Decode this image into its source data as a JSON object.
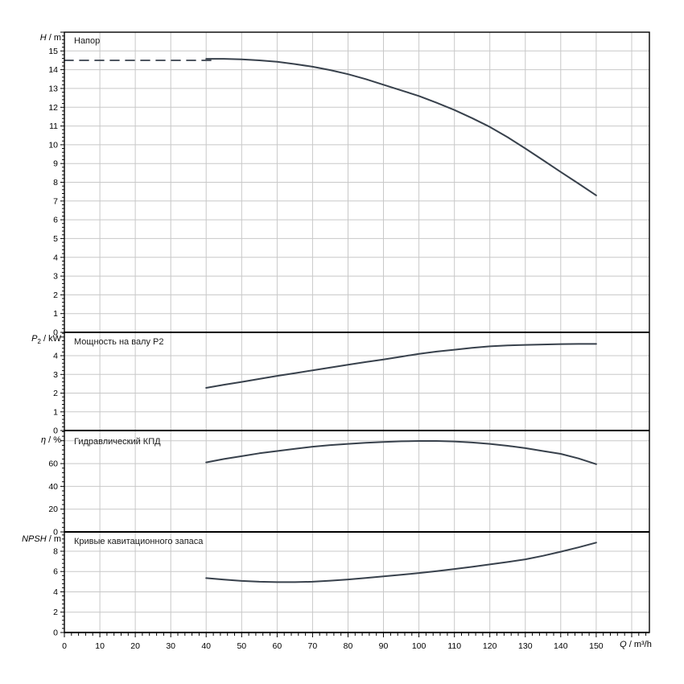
{
  "page": {
    "background": "#ffffff"
  },
  "colors": {
    "curve": "#38414c",
    "grid": "#c8c8c8",
    "frame": "#000000",
    "text": "#000000"
  },
  "axis_separator": " / ",
  "x_axis": {
    "label_symbol": "Q",
    "label_unit": "m³/h",
    "min": 0,
    "max": 165,
    "major_tick_step": 10,
    "minor_tick_step": 2,
    "labeled_ticks": [
      0,
      10,
      20,
      30,
      40,
      50,
      60,
      70,
      80,
      90,
      100,
      110,
      120,
      130,
      140,
      150
    ]
  },
  "chart_data": [
    {
      "type": "line",
      "id": "head",
      "title": "Напор",
      "y_symbol": "H",
      "y_sub": "",
      "y_unit": "m",
      "ylim": [
        0,
        16
      ],
      "yticks": [
        0,
        1,
        2,
        3,
        4,
        5,
        6,
        7,
        8,
        9,
        10,
        11,
        12,
        13,
        14,
        15
      ],
      "ygrid": [
        1,
        2,
        3,
        4,
        5,
        6,
        7,
        8,
        9,
        10,
        11,
        12,
        13,
        14,
        15
      ],
      "y_major_step": 1,
      "y_minor_step": 0.2,
      "series": [
        {
          "id": "nominal-head-dashed",
          "style": "dashed",
          "points": [
            [
              0,
              14.5
            ],
            [
              43,
              14.5
            ]
          ]
        },
        {
          "id": "hq-curve",
          "style": "solid",
          "points": [
            [
              40,
              14.58
            ],
            [
              45,
              14.58
            ],
            [
              50,
              14.55
            ],
            [
              55,
              14.5
            ],
            [
              60,
              14.42
            ],
            [
              65,
              14.3
            ],
            [
              70,
              14.16
            ],
            [
              75,
              13.98
            ],
            [
              80,
              13.76
            ],
            [
              85,
              13.5
            ],
            [
              90,
              13.2
            ],
            [
              95,
              12.9
            ],
            [
              100,
              12.6
            ],
            [
              105,
              12.24
            ],
            [
              110,
              11.85
            ],
            [
              115,
              11.42
            ],
            [
              120,
              10.95
            ],
            [
              125,
              10.4
            ],
            [
              130,
              9.8
            ],
            [
              135,
              9.18
            ],
            [
              140,
              8.55
            ],
            [
              145,
              7.93
            ],
            [
              150,
              7.3
            ]
          ]
        }
      ]
    },
    {
      "type": "line",
      "id": "power",
      "title": "Мощность на валу P2",
      "y_symbol": "P",
      "y_sub": "2",
      "y_unit": "kW",
      "ylim": [
        0,
        5.25
      ],
      "yticks": [
        0,
        1,
        2,
        3,
        4
      ],
      "ygrid": [
        1,
        2,
        3,
        4
      ],
      "y_major_step": 1,
      "y_minor_step": 0.2,
      "series": [
        {
          "id": "p2-curve",
          "style": "solid",
          "points": [
            [
              40,
              2.28
            ],
            [
              45,
              2.45
            ],
            [
              50,
              2.6
            ],
            [
              55,
              2.76
            ],
            [
              60,
              2.92
            ],
            [
              65,
              3.07
            ],
            [
              70,
              3.22
            ],
            [
              75,
              3.37
            ],
            [
              80,
              3.52
            ],
            [
              85,
              3.66
            ],
            [
              90,
              3.8
            ],
            [
              95,
              3.95
            ],
            [
              100,
              4.1
            ],
            [
              105,
              4.22
            ],
            [
              110,
              4.32
            ],
            [
              115,
              4.42
            ],
            [
              120,
              4.5
            ],
            [
              125,
              4.55
            ],
            [
              130,
              4.58
            ],
            [
              135,
              4.6
            ],
            [
              140,
              4.62
            ],
            [
              145,
              4.63
            ],
            [
              150,
              4.63
            ]
          ]
        }
      ]
    },
    {
      "type": "line",
      "id": "efficiency",
      "title": "Гидравлический КПД",
      "y_symbol": "η",
      "y_sub": "",
      "y_unit": "%",
      "ylim": [
        0,
        89
      ],
      "yticks": [
        0,
        20,
        40,
        60
      ],
      "ygrid": [
        20,
        40,
        60,
        80
      ],
      "y_major_step": 20,
      "y_minor_step": 4,
      "series": [
        {
          "id": "eta-curve",
          "style": "solid",
          "points": [
            [
              40,
              61
            ],
            [
              45,
              64
            ],
            [
              50,
              66.5
            ],
            [
              55,
              69
            ],
            [
              60,
              71
            ],
            [
              65,
              73
            ],
            [
              70,
              74.8
            ],
            [
              75,
              76.2
            ],
            [
              80,
              77.3
            ],
            [
              85,
              78.2
            ],
            [
              90,
              79
            ],
            [
              95,
              79.5
            ],
            [
              100,
              79.8
            ],
            [
              105,
              79.8
            ],
            [
              110,
              79.4
            ],
            [
              115,
              78.5
            ],
            [
              120,
              77.3
            ],
            [
              125,
              75.6
            ],
            [
              130,
              73.5
            ],
            [
              135,
              71
            ],
            [
              140,
              68.5
            ],
            [
              145,
              64.5
            ],
            [
              150,
              59.5
            ]
          ]
        }
      ]
    },
    {
      "type": "line",
      "id": "npsh",
      "title": "Кривые кавитационного запаса",
      "y_symbol": "NPSH",
      "y_sub": "",
      "y_unit": "m",
      "ylim": [
        0,
        9.9
      ],
      "yticks": [
        0,
        2,
        4,
        6,
        8
      ],
      "ygrid": [
        2,
        4,
        6,
        8
      ],
      "y_major_step": 2,
      "y_minor_step": 0.4,
      "series": [
        {
          "id": "npsh-curve",
          "style": "solid",
          "points": [
            [
              40,
              5.35
            ],
            [
              45,
              5.2
            ],
            [
              50,
              5.08
            ],
            [
              55,
              5.0
            ],
            [
              60,
              4.96
            ],
            [
              65,
              4.96
            ],
            [
              70,
              5.0
            ],
            [
              75,
              5.1
            ],
            [
              80,
              5.22
            ],
            [
              85,
              5.36
            ],
            [
              90,
              5.52
            ],
            [
              95,
              5.68
            ],
            [
              100,
              5.85
            ],
            [
              105,
              6.04
            ],
            [
              110,
              6.25
            ],
            [
              115,
              6.46
            ],
            [
              120,
              6.7
            ],
            [
              125,
              6.94
            ],
            [
              130,
              7.2
            ],
            [
              135,
              7.55
            ],
            [
              140,
              7.95
            ],
            [
              145,
              8.38
            ],
            [
              150,
              8.85
            ]
          ]
        }
      ]
    }
  ]
}
